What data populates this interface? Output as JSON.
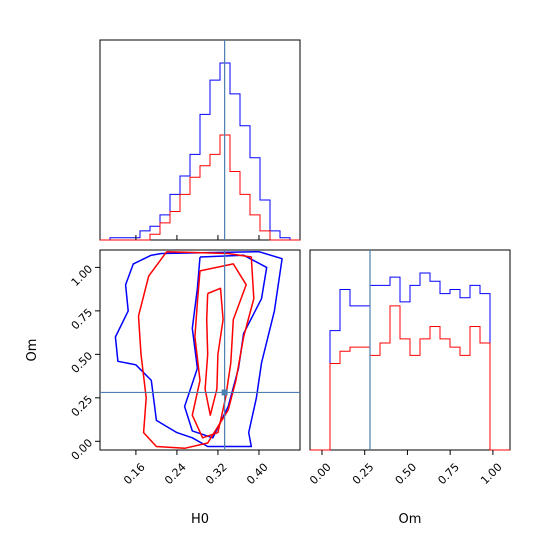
{
  "chart_data": [
    {
      "panel": "H0 marginal",
      "type": "histogram",
      "x_range": [
        0.09,
        0.48
      ],
      "bin_edges": [
        0.09,
        0.1095,
        0.129,
        0.1485,
        0.168,
        0.1875,
        0.207,
        0.2265,
        0.246,
        0.2655,
        0.285,
        0.3045,
        0.324,
        0.3435,
        0.363,
        0.3825,
        0.402,
        0.4215,
        0.441,
        0.4605,
        0.48
      ],
      "truth": 0.333,
      "series": [
        {
          "color": "#0000ff",
          "values": [
            0,
            2,
            2,
            2,
            8,
            12,
            22,
            40,
            56,
            75,
            110,
            140,
            155,
            128,
            100,
            72,
            35,
            8,
            2,
            0
          ]
        },
        {
          "color": "#ff0000",
          "values": [
            0,
            0,
            0,
            0,
            0,
            5,
            15,
            25,
            40,
            55,
            65,
            75,
            92,
            60,
            40,
            22,
            8,
            0,
            0,
            0
          ]
        }
      ]
    },
    {
      "panel": "H0-Om joint",
      "type": "contour",
      "x_range": [
        0.09,
        0.48
      ],
      "y_range": [
        -0.05,
        1.1
      ],
      "xlabel": "H0",
      "ylabel": "Om",
      "x_ticks": [
        "0.16",
        "0.24",
        "0.32",
        "0.40"
      ],
      "x_tick_values": [
        0.16,
        0.24,
        0.32,
        0.4
      ],
      "y_ticks": [
        "0.00",
        "0.25",
        "0.50",
        "0.75",
        "1.00"
      ],
      "y_tick_values": [
        0,
        0.25,
        0.5,
        0.75,
        1.0
      ],
      "truth": [
        0.333,
        0.281
      ],
      "truth_color": "#4c7fb0",
      "contours": [
        {
          "color": "#0000ff",
          "points": [
            [
              0.21,
              1.08
            ],
            [
              0.4,
              1.09
            ],
            [
              0.445,
              1.05
            ],
            [
              0.43,
              0.75
            ],
            [
              0.405,
              0.45
            ],
            [
              0.395,
              0.25
            ],
            [
              0.38,
              0.05
            ],
            [
              0.385,
              -0.03
            ],
            [
              0.3,
              -0.03
            ],
            [
              0.27,
              0.02
            ],
            [
              0.24,
              0.05
            ],
            [
              0.2,
              0.12
            ],
            [
              0.19,
              0.35
            ],
            [
              0.16,
              0.44
            ],
            [
              0.125,
              0.46
            ],
            [
              0.12,
              0.6
            ],
            [
              0.145,
              0.75
            ],
            [
              0.14,
              0.9
            ],
            [
              0.155,
              1.02
            ],
            [
              0.19,
              1.07
            ],
            [
              0.21,
              1.08
            ]
          ]
        },
        {
          "color": "#0000ff",
          "points": [
            [
              0.285,
              1.06
            ],
            [
              0.37,
              1.07
            ],
            [
              0.415,
              1.0
            ],
            [
              0.405,
              0.82
            ],
            [
              0.37,
              0.62
            ],
            [
              0.36,
              0.42
            ],
            [
              0.34,
              0.2
            ],
            [
              0.31,
              0.02
            ],
            [
              0.27,
              0.06
            ],
            [
              0.255,
              0.2
            ],
            [
              0.28,
              0.42
            ],
            [
              0.27,
              0.65
            ],
            [
              0.28,
              0.88
            ],
            [
              0.285,
              1.06
            ]
          ]
        },
        {
          "color": "#ff0000",
          "points": [
            [
              0.22,
              1.09
            ],
            [
              0.34,
              1.08
            ],
            [
              0.385,
              1.06
            ],
            [
              0.39,
              0.82
            ],
            [
              0.37,
              0.6
            ],
            [
              0.355,
              0.35
            ],
            [
              0.34,
              0.18
            ],
            [
              0.3,
              -0.01
            ],
            [
              0.255,
              -0.04
            ],
            [
              0.2,
              -0.03
            ],
            [
              0.175,
              0.05
            ],
            [
              0.18,
              0.25
            ],
            [
              0.17,
              0.5
            ],
            [
              0.165,
              0.72
            ],
            [
              0.185,
              0.95
            ],
            [
              0.22,
              1.09
            ]
          ]
        },
        {
          "color": "#ff0000",
          "points": [
            [
              0.285,
              0.98
            ],
            [
              0.35,
              1.02
            ],
            [
              0.375,
              0.9
            ],
            [
              0.35,
              0.7
            ],
            [
              0.345,
              0.45
            ],
            [
              0.335,
              0.25
            ],
            [
              0.32,
              0.05
            ],
            [
              0.29,
              0.02
            ],
            [
              0.27,
              0.15
            ],
            [
              0.285,
              0.35
            ],
            [
              0.275,
              0.6
            ],
            [
              0.28,
              0.8
            ],
            [
              0.285,
              0.98
            ]
          ]
        },
        {
          "color": "#ff0000",
          "points": [
            [
              0.3,
              0.85
            ],
            [
              0.325,
              0.88
            ],
            [
              0.33,
              0.7
            ],
            [
              0.32,
              0.5
            ],
            [
              0.318,
              0.3
            ],
            [
              0.305,
              0.15
            ],
            [
              0.295,
              0.3
            ],
            [
              0.3,
              0.5
            ],
            [
              0.298,
              0.7
            ],
            [
              0.3,
              0.85
            ]
          ]
        }
      ]
    },
    {
      "panel": "Om marginal",
      "type": "histogram",
      "x_range": [
        -0.07,
        1.1
      ],
      "xlabel": "Om",
      "x_ticks": [
        "0.00",
        "0.25",
        "0.50",
        "0.75",
        "1.00"
      ],
      "x_tick_values": [
        0,
        0.25,
        0.5,
        0.75,
        1.0
      ],
      "bin_edges": [
        -0.07,
        -0.0115,
        0.047,
        0.1055,
        0.164,
        0.2225,
        0.281,
        0.3395,
        0.398,
        0.4565,
        0.515,
        0.5735,
        0.632,
        0.6905,
        0.749,
        0.8075,
        0.866,
        0.9245,
        0.983,
        1.0415,
        1.1
      ],
      "truth": 0.281,
      "series": [
        {
          "color": "#0000ff",
          "values": [
            0,
            0,
            58,
            78,
            70,
            70,
            80,
            80,
            84,
            72,
            80,
            86,
            82,
            76,
            78,
            74,
            80,
            76,
            0,
            0
          ]
        },
        {
          "color": "#ff0000",
          "values": [
            0,
            0,
            42,
            48,
            50,
            50,
            46,
            52,
            70,
            54,
            46,
            54,
            60,
            54,
            50,
            46,
            60,
            52,
            0,
            0
          ]
        }
      ]
    }
  ]
}
